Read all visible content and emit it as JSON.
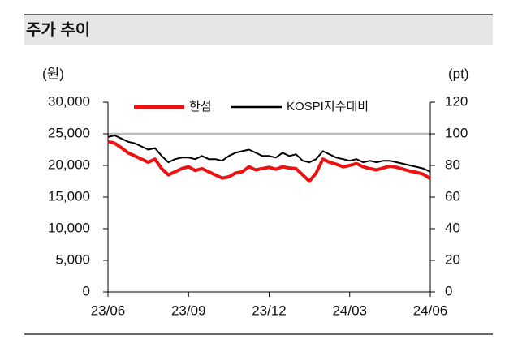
{
  "chart_data": {
    "type": "line",
    "title": "주가 추이",
    "y_unit": "(원)",
    "y2_unit": "(pt)",
    "categories": [
      "23/06",
      null,
      null,
      null,
      null,
      null,
      null,
      null,
      null,
      null,
      null,
      null,
      "23/09",
      null,
      null,
      null,
      null,
      null,
      null,
      null,
      null,
      null,
      null,
      null,
      "23/12",
      null,
      null,
      null,
      null,
      null,
      null,
      null,
      null,
      null,
      null,
      null,
      "24/03",
      null,
      null,
      null,
      null,
      null,
      null,
      null,
      null,
      null,
      null,
      null,
      "24/06"
    ],
    "series": [
      {
        "name": "한섬",
        "color": "#ee1111",
        "axis": "y",
        "values": [
          23800,
          23500,
          22800,
          22000,
          21500,
          21000,
          20500,
          21000,
          19500,
          18500,
          19000,
          19500,
          19800,
          19200,
          19500,
          19000,
          18500,
          18000,
          18200,
          18800,
          19000,
          19800,
          19300,
          19500,
          19700,
          19400,
          19800,
          19600,
          19500,
          18500,
          17500,
          18800,
          21000,
          20500,
          20200,
          19800,
          20000,
          20300,
          19800,
          19500,
          19300,
          19600,
          19900,
          19700,
          19400,
          19100,
          18900,
          18600,
          17900
        ]
      },
      {
        "name": "KOSPI지수대비",
        "color": "#000000",
        "axis": "y2",
        "values": [
          98,
          99,
          97,
          95,
          94,
          92,
          90,
          91,
          86,
          82,
          84,
          85,
          85,
          84,
          86,
          84,
          84,
          83,
          86,
          88,
          89,
          90,
          88,
          86,
          86,
          85,
          88,
          86,
          87,
          83,
          82,
          84,
          89,
          87,
          85,
          84,
          83,
          84,
          82,
          83,
          82,
          83,
          83,
          82,
          81,
          80,
          79,
          78,
          76
        ]
      }
    ],
    "ylim": [
      0,
      30000
    ],
    "yticks": [
      {
        "value": 0,
        "label": "0"
      },
      {
        "value": 5000,
        "label": "5,000"
      },
      {
        "value": 10000,
        "label": "10,000"
      },
      {
        "value": 15000,
        "label": "15,000"
      },
      {
        "value": 20000,
        "label": "20,000"
      },
      {
        "value": 25000,
        "label": "25,000"
      },
      {
        "value": 30000,
        "label": "30,000"
      }
    ],
    "y2lim": [
      0,
      120
    ],
    "y2ticks": [
      0,
      20,
      40,
      60,
      80,
      100,
      120
    ],
    "y2_reference": 100,
    "legend": "top"
  }
}
